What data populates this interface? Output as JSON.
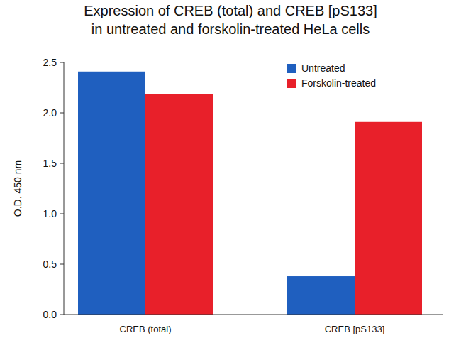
{
  "chart_data": {
    "type": "bar",
    "title": [
      "Expression of CREB (total) and CREB [pS133]",
      "in untreated and forskolin-treated HeLa cells"
    ],
    "y_label": "O.D. 450 nm",
    "categories": [
      "CREB (total)",
      "CREB [pS133]"
    ],
    "series": [
      {
        "name": "Untreated",
        "color": "#1f5fbf",
        "values": [
          2.41,
          0.38
        ]
      },
      {
        "name": "Forskolin-treated",
        "color": "#e8202a",
        "values": [
          2.19,
          1.91
        ]
      }
    ],
    "ylim": [
      0,
      2.5
    ],
    "yticks": [
      {
        "value": 0,
        "label": "0.0"
      },
      0.5,
      {
        "value": 1,
        "label": "1.0"
      },
      1.5,
      {
        "value": 2,
        "label": "2.0"
      },
      2.5
    ],
    "grid": false,
    "legend": "upper right"
  }
}
